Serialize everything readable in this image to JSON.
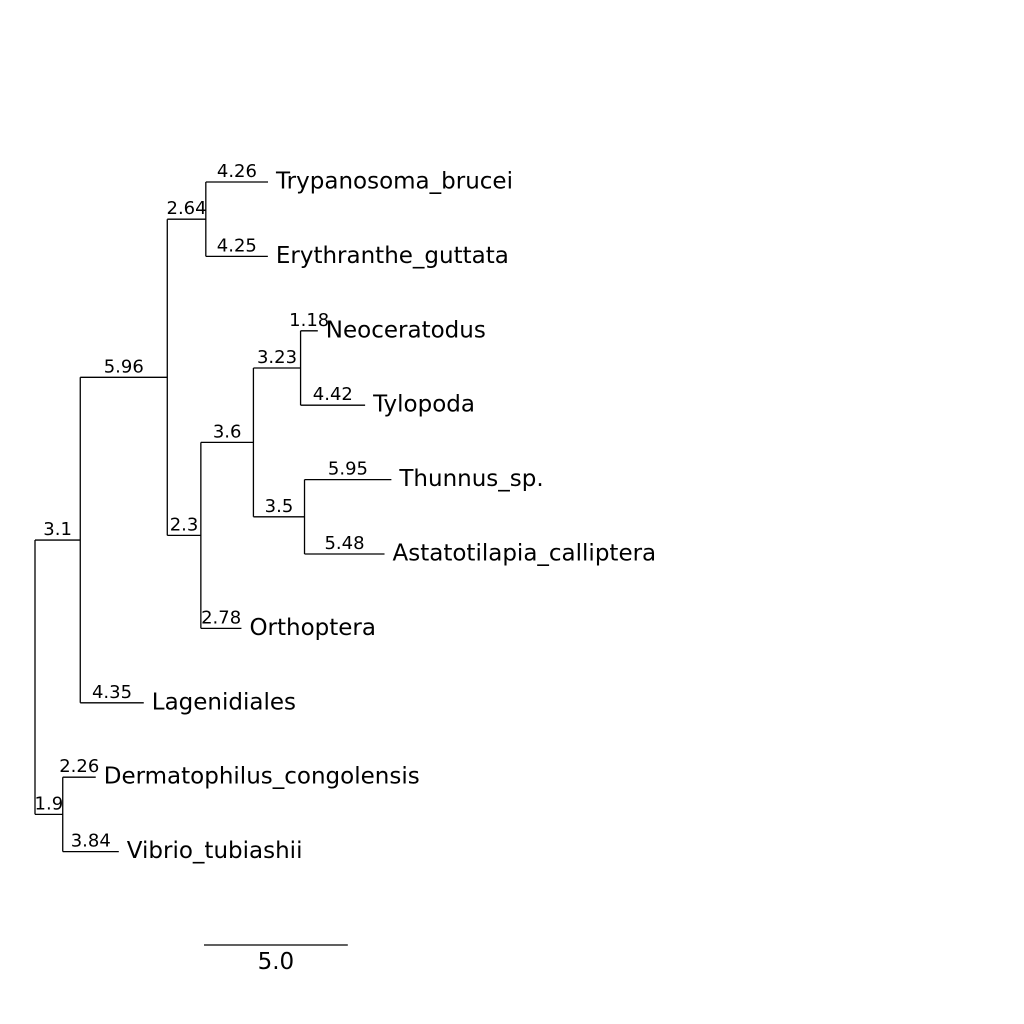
{
  "tree": {
    "branch": "3.1",
    "children": [
      {
        "branch": "5.96",
        "children": [
          {
            "branch": "2.64",
            "children": [
              {
                "branch": "4.26",
                "name": "Trypanosoma_brucei"
              },
              {
                "branch": "4.25",
                "name": "Erythranthe_guttata"
              }
            ]
          },
          {
            "branch": "2.3",
            "children": [
              {
                "branch": "3.6",
                "children": [
                  {
                    "branch": "3.23",
                    "children": [
                      {
                        "branch": "1.18",
                        "name": "Neoceratodus"
                      },
                      {
                        "branch": "4.42",
                        "name": "Tylopoda"
                      }
                    ]
                  },
                  {
                    "branch": "3.5",
                    "children": [
                      {
                        "branch": "5.95",
                        "name": "Thunnus_sp."
                      },
                      {
                        "branch": "5.48",
                        "name": "Astatotilapia_calliptera"
                      }
                    ]
                  }
                ]
              },
              {
                "branch": "2.78",
                "name": "Orthoptera"
              }
            ]
          }
        ]
      },
      {
        "branch": "4.35",
        "name": "Lagenidiales"
      }
    ]
  },
  "tree2": {
    "branch": "1.9",
    "children": [
      {
        "branch": "2.26",
        "name": "Dermatophilus_congolensis"
      },
      {
        "branch": "3.84",
        "name": "Vibrio_tubiashii"
      }
    ]
  },
  "scale_bar": {
    "value": 5.0,
    "label": "5.0"
  }
}
